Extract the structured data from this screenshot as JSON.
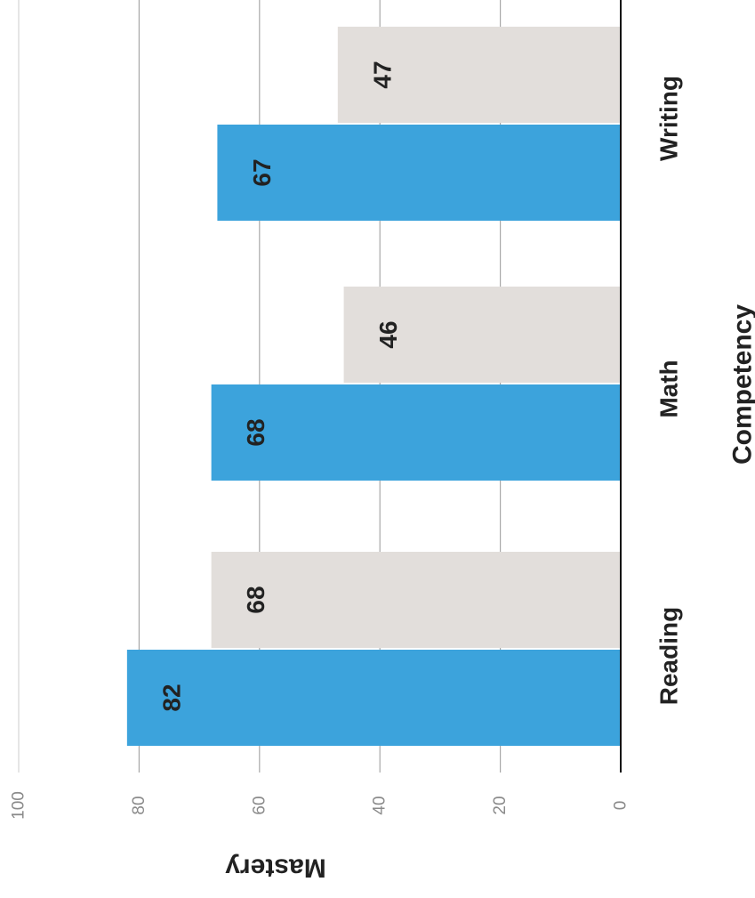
{
  "chart_data": {
    "type": "bar",
    "orientation": "horizontal",
    "xlabel": "Mastery",
    "ylabel": "Competency",
    "xlim": [
      0,
      100
    ],
    "xticks": [
      "0",
      "20",
      "40",
      "60",
      "80",
      "100"
    ],
    "grid": true,
    "categories": [
      "Reading",
      "Math",
      "Writing"
    ],
    "series": [
      {
        "values": [
          82,
          68,
          67
        ],
        "color": "#3ca3dc",
        "label_color": "#222222"
      },
      {
        "values": [
          68,
          46,
          47
        ],
        "color": "#e2dedb",
        "label_color": "#222222"
      }
    ],
    "data_labels": [
      [
        "82",
        "68",
        "67"
      ],
      [
        "68",
        "46",
        "47"
      ]
    ]
  }
}
